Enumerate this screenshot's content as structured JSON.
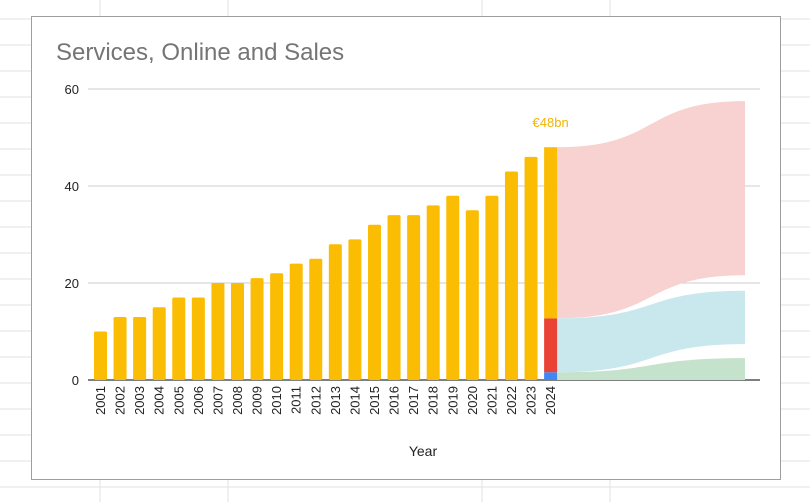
{
  "chart_data": {
    "type": "bar",
    "title": "Services, Online and Sales",
    "xlabel": "Year",
    "ylabel": "",
    "ylim": [
      0,
      60
    ],
    "yticks": [
      0,
      20,
      40,
      60
    ],
    "grid": true,
    "categories": [
      "2001",
      "2002",
      "2003",
      "2004",
      "2005",
      "2006",
      "2007",
      "2008",
      "2009",
      "2010",
      "2011",
      "2012",
      "2013",
      "2014",
      "2015",
      "2016",
      "2017",
      "2018",
      "2019",
      "2020",
      "2021",
      "2022",
      "2023",
      "2024"
    ],
    "values": [
      10,
      13,
      13,
      15,
      17,
      17,
      20,
      20,
      21,
      22,
      24,
      25,
      28,
      29,
      32,
      34,
      34,
      36,
      38,
      35,
      38,
      43,
      46,
      48
    ],
    "bar_color": "#fbbc04",
    "last_bar_segments": [
      {
        "name": "segment-blue",
        "from": 0,
        "to": 1.6,
        "color": "#4285f4"
      },
      {
        "name": "segment-red",
        "from": 1.6,
        "to": 12.7,
        "color": "#ea4335"
      },
      {
        "name": "segment-yellow",
        "from": 12.7,
        "to": 48,
        "color": "#fbbc04"
      }
    ],
    "flows": [
      {
        "name": "flow-pink",
        "start": [
          12.7,
          48
        ],
        "end": [
          21.6,
          57.5
        ],
        "color": "#f8d2d1"
      },
      {
        "name": "flow-cyan",
        "start": [
          1.6,
          12.7
        ],
        "end": [
          7.4,
          18.4
        ],
        "color": "#c9e8ee"
      },
      {
        "name": "flow-green",
        "start": [
          0,
          1.6
        ],
        "end": [
          0,
          4.5
        ],
        "color": "#c5e3cc"
      }
    ],
    "annotation": {
      "text": "€48bn",
      "category": "2024",
      "color": "#f4b400"
    }
  }
}
